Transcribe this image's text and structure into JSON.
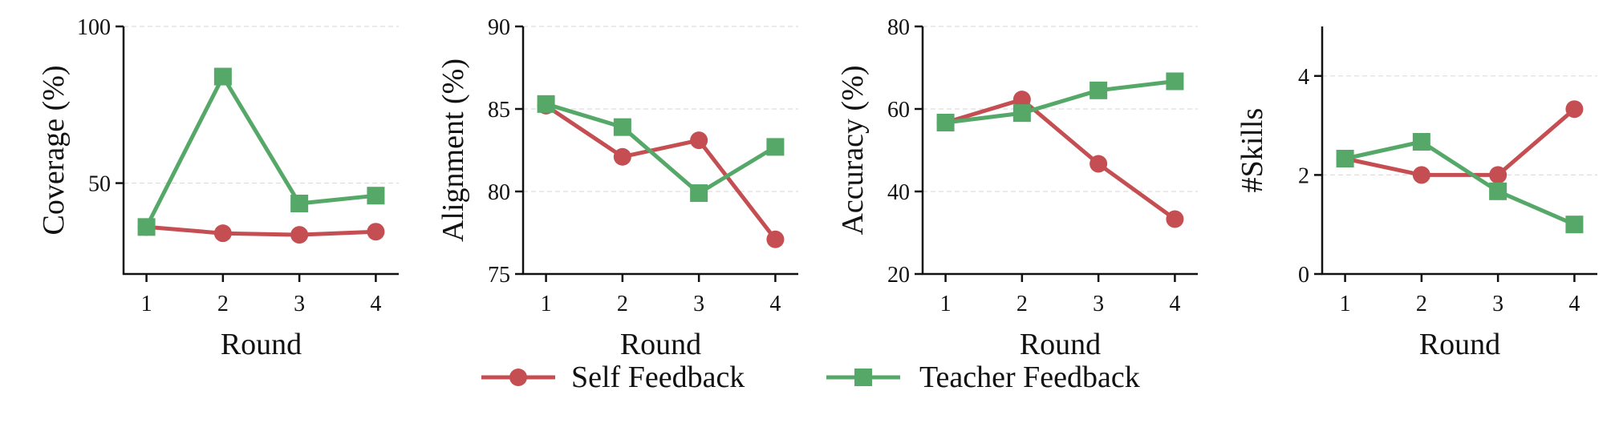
{
  "chart_data": [
    {
      "type": "line",
      "ylabel": "Coverage (%)",
      "xlabel": "Round",
      "x": [
        1,
        2,
        3,
        4
      ],
      "xlim": [
        0.7,
        4.3
      ],
      "ylim": [
        21,
        100
      ],
      "yticks": [
        50,
        100
      ],
      "grid": "horizontal dashed",
      "series": [
        {
          "name": "Self Feedback",
          "values": [
            36,
            34,
            33.5,
            34.5
          ]
        },
        {
          "name": "Teacher Feedback",
          "values": [
            36,
            84,
            43.5,
            46
          ]
        }
      ]
    },
    {
      "type": "line",
      "ylabel": "Alignment (%)",
      "xlabel": "Round",
      "x": [
        1,
        2,
        3,
        4
      ],
      "xlim": [
        0.7,
        4.3
      ],
      "ylim": [
        75,
        90
      ],
      "yticks": [
        75,
        80,
        85,
        90
      ],
      "grid": "horizontal dashed",
      "series": [
        {
          "name": "Self Feedback",
          "values": [
            85.2,
            82.1,
            83.1,
            77.1
          ]
        },
        {
          "name": "Teacher Feedback",
          "values": [
            85.3,
            83.9,
            79.9,
            82.7
          ]
        }
      ]
    },
    {
      "type": "line",
      "ylabel": "Accuracy (%)",
      "xlabel": "Round",
      "x": [
        1,
        2,
        3,
        4
      ],
      "xlim": [
        0.7,
        4.3
      ],
      "ylim": [
        20,
        80
      ],
      "yticks": [
        20,
        40,
        60,
        80
      ],
      "grid": "horizontal dashed",
      "series": [
        {
          "name": "Self Feedback",
          "values": [
            56.7,
            62.3,
            46.7,
            33.3
          ]
        },
        {
          "name": "Teacher Feedback",
          "values": [
            56.7,
            59.0,
            64.5,
            66.7
          ]
        }
      ]
    },
    {
      "type": "line",
      "ylabel": "#Skills",
      "xlabel": "Round",
      "x": [
        1,
        2,
        3,
        4
      ],
      "xlim": [
        0.7,
        4.3
      ],
      "ylim": [
        0,
        5
      ],
      "yticks": [
        0,
        2,
        4
      ],
      "grid": "horizontal dashed",
      "series": [
        {
          "name": "Self Feedback",
          "values": [
            2.33,
            2.0,
            2.0,
            3.33
          ]
        },
        {
          "name": "Teacher Feedback",
          "values": [
            2.33,
            2.67,
            1.67,
            1.0
          ]
        }
      ]
    }
  ],
  "legend": {
    "placement": "bottom-center",
    "items": [
      {
        "label": "Self Feedback",
        "marker": "circle",
        "color": "#c44e52"
      },
      {
        "label": "Teacher Feedback",
        "marker": "square",
        "color": "#55a868"
      }
    ]
  },
  "colors": {
    "Self Feedback": "#c44e52",
    "Teacher Feedback": "#55a868",
    "grid": "#dddddd",
    "axis": "#111111"
  }
}
